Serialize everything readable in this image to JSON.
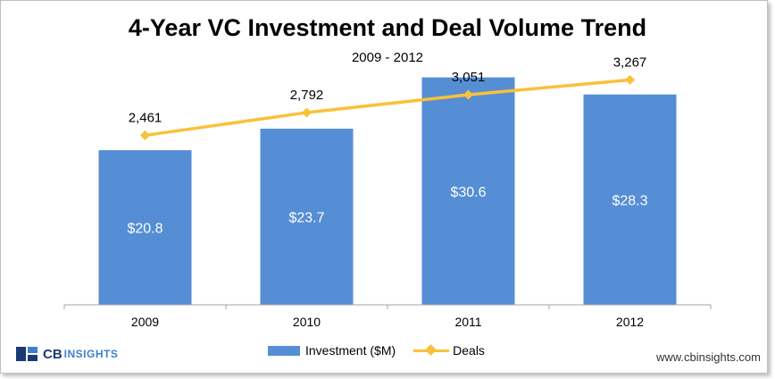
{
  "chart_data": {
    "type": "bar",
    "title": "4-Year VC Investment and Deal Volume Trend",
    "subtitle": "2009 - 2012",
    "categories": [
      "2009",
      "2010",
      "2011",
      "2012"
    ],
    "series": [
      {
        "name": "Investment ($M)",
        "type": "bar",
        "values": [
          20.8,
          23.7,
          30.6,
          28.3
        ],
        "labels": [
          "$20.8",
          "$23.7",
          "$30.6",
          "$28.3"
        ],
        "color": "#558ed5"
      },
      {
        "name": "Deals",
        "type": "line",
        "values": [
          2461,
          2792,
          3051,
          3267
        ],
        "labels": [
          "2,461",
          "2,792",
          "3,051",
          "3,267"
        ],
        "color": "#f9c13a"
      }
    ],
    "bar_axis_range": [
      0,
      35
    ],
    "line_axis_range": [
      0,
      3700
    ],
    "grid": false,
    "legend_position": "bottom"
  },
  "logo": {
    "cb": "CB",
    "insights": "INSIGHTS"
  },
  "website": "www.cbinsights.com"
}
